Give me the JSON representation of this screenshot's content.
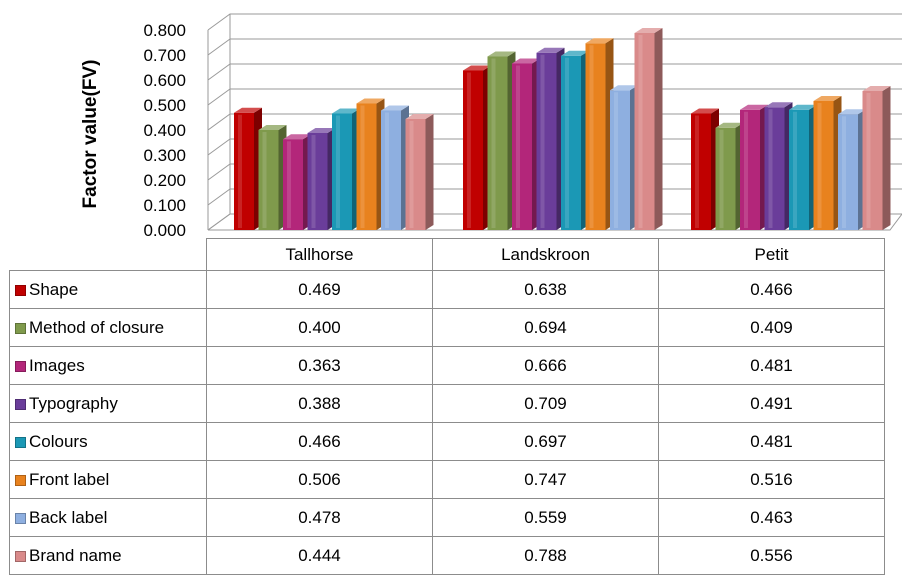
{
  "chart_data": {
    "type": "bar",
    "ylabel": "Factor value(FV)",
    "ylim": [
      0,
      0.8
    ],
    "yticks": [
      "0.000",
      "0.100",
      "0.200",
      "0.300",
      "0.400",
      "0.500",
      "0.600",
      "0.700",
      "0.800"
    ],
    "grid": true,
    "categories": [
      "Tallhorse",
      "Landskroon",
      "Petit"
    ],
    "series": [
      {
        "name": "Shape",
        "color": "#c00000",
        "values": [
          0.469,
          0.638,
          0.466
        ],
        "labels": [
          "0.469",
          "0.638",
          "0.466"
        ]
      },
      {
        "name": "Method of closure",
        "color": "#7f9a4c",
        "values": [
          0.4,
          0.694,
          0.409
        ],
        "labels": [
          "0.400",
          "0.694",
          "0.409"
        ]
      },
      {
        "name": "Images",
        "color": "#b3267a",
        "values": [
          0.363,
          0.666,
          0.481
        ],
        "labels": [
          "0.363",
          "0.666",
          "0.481"
        ]
      },
      {
        "name": "Typography",
        "color": "#6a3d9a",
        "values": [
          0.388,
          0.709,
          0.491
        ],
        "labels": [
          "0.388",
          "0.709",
          "0.491"
        ]
      },
      {
        "name": "Colours",
        "color": "#1b98b5",
        "values": [
          0.466,
          0.697,
          0.481
        ],
        "labels": [
          "0.466",
          "0.697",
          "0.481"
        ]
      },
      {
        "name": "Front label",
        "color": "#e8821e",
        "values": [
          0.506,
          0.747,
          0.516
        ],
        "labels": [
          "0.506",
          "0.747",
          "0.516"
        ]
      },
      {
        "name": "Back label",
        "color": "#8eafe0",
        "values": [
          0.478,
          0.559,
          0.463
        ],
        "labels": [
          "0.478",
          "0.559",
          "0.463"
        ]
      },
      {
        "name": "Brand name",
        "color": "#d98a8a",
        "values": [
          0.444,
          0.788,
          0.556
        ],
        "labels": [
          "0.444",
          "0.788",
          "0.556"
        ]
      }
    ]
  }
}
